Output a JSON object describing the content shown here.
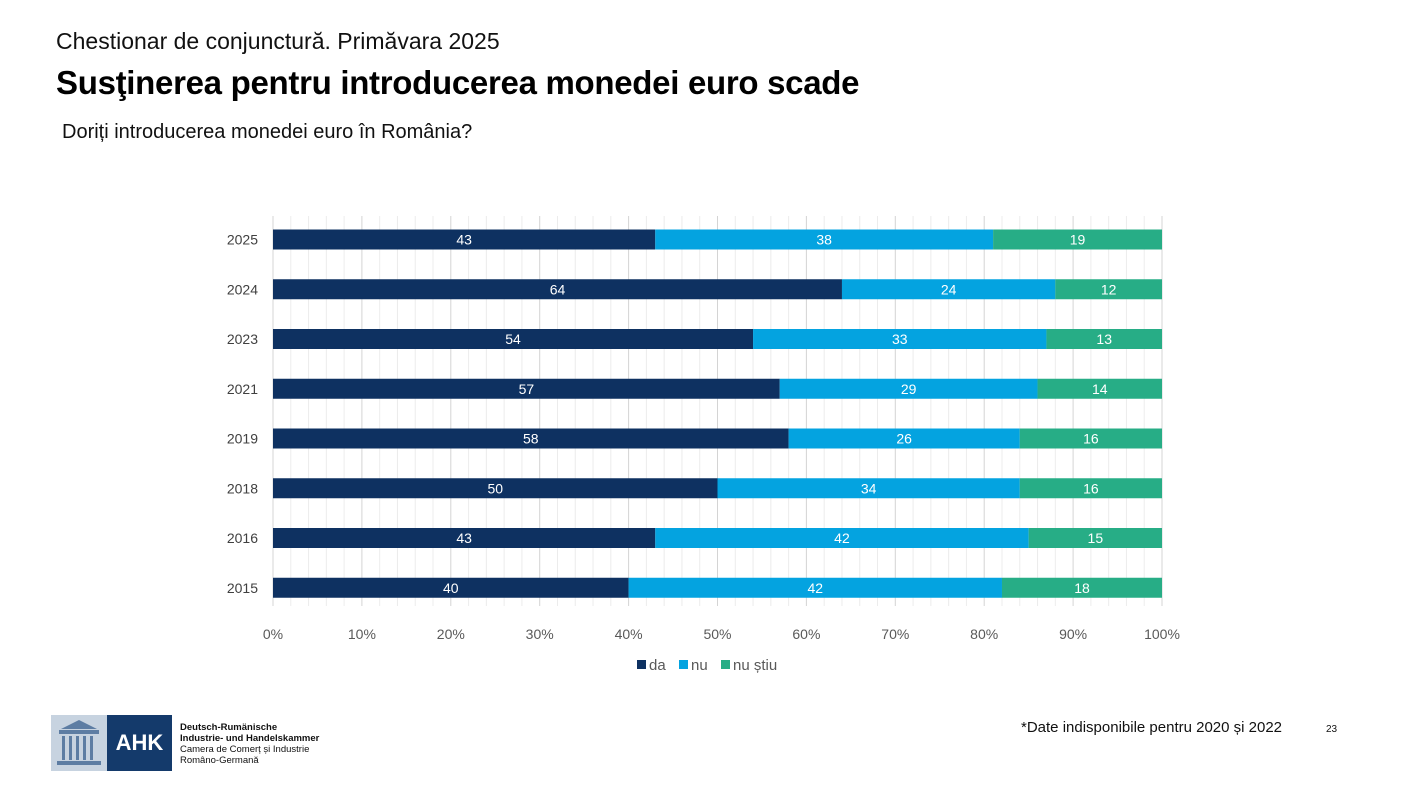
{
  "header": {
    "subtitle": "Chestionar de conjunctură. Primăvara 2025",
    "title": "Susţinerea pentru introducerea monedei euro scade",
    "question": "Doriți introducerea monedei euro în România?"
  },
  "chart_data": {
    "type": "bar",
    "orientation": "horizontal-stacked-100",
    "categories": [
      "2025",
      "2024",
      "2023",
      "2021",
      "2019",
      "2018",
      "2016",
      "2015"
    ],
    "series": [
      {
        "name": "da",
        "color": "#0e3161",
        "values": [
          43,
          64,
          54,
          57,
          58,
          50,
          43,
          40
        ]
      },
      {
        "name": "nu",
        "color": "#04a3e0",
        "values": [
          38,
          24,
          33,
          29,
          26,
          34,
          42,
          42
        ]
      },
      {
        "name": "nu știu",
        "color": "#27ad86",
        "values": [
          19,
          12,
          13,
          14,
          16,
          16,
          15,
          18
        ]
      }
    ],
    "xaxis": {
      "ticks": [
        "0%",
        "10%",
        "20%",
        "30%",
        "40%",
        "50%",
        "60%",
        "70%",
        "80%",
        "90%",
        "100%"
      ],
      "range": [
        0,
        100
      ]
    },
    "grid": true,
    "legend_position": "bottom",
    "data_labels": true
  },
  "footer": {
    "footnote": "*Date indisponibile pentru 2020 și 2022",
    "page_number": "23",
    "logo_text": "AHK",
    "org_lines": [
      "Deutsch-Rumänische",
      "Industrie- und Handelskammer",
      "Camera de Comerț și Industrie",
      "Româno-Germană"
    ]
  }
}
